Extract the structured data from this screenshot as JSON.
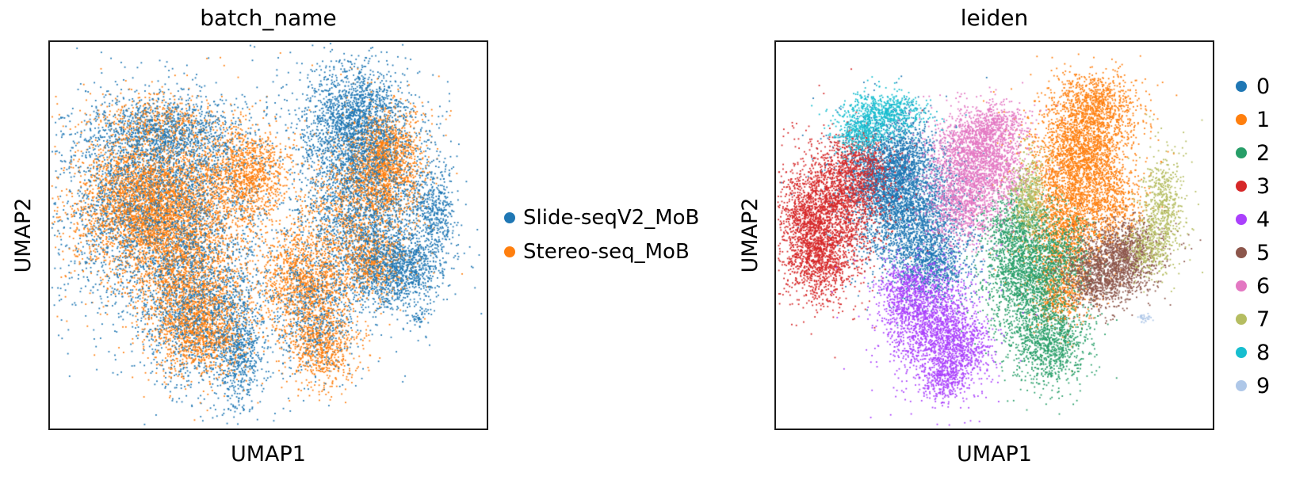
{
  "figure": {
    "background": "#ffffff"
  },
  "chart_data": [
    {
      "type": "scatter",
      "title": "batch_name",
      "xlabel": "UMAP1",
      "ylabel": "UMAP2",
      "axes": {
        "frame": true,
        "ticks": "none",
        "x_range_normalized": [
          0,
          1
        ],
        "y_range_normalized": [
          0,
          1
        ]
      },
      "legend_position": "center right outside",
      "marker_px": 1.8,
      "draw": {
        "passes": 3
      },
      "series": [
        {
          "name": "Stereo-seq_MoB",
          "color": "#ff7f0e",
          "description": "dense orange core of left lobe, pink/purple/green regions, and a dense patch inside upper right lobe",
          "blobs": [
            [
              0.24,
              0.42,
              0.085,
              0.09,
              4200
            ],
            [
              0.32,
              0.63,
              0.06,
              0.085,
              1500
            ],
            [
              0.35,
              0.75,
              0.05,
              0.055,
              950
            ],
            [
              0.455,
              0.34,
              0.045,
              0.06,
              1100
            ],
            [
              0.25,
              0.2,
              0.06,
              0.03,
              350
            ],
            [
              0.77,
              0.31,
              0.04,
              0.065,
              1450
            ],
            [
              0.585,
              0.62,
              0.05,
              0.075,
              1350
            ],
            [
              0.625,
              0.79,
              0.04,
              0.05,
              650
            ],
            [
              0.7,
              0.42,
              0.055,
              0.09,
              800
            ],
            [
              0.74,
              0.57,
              0.04,
              0.04,
              550
            ]
          ]
        },
        {
          "name": "Slide-seqV2_MoB",
          "color": "#1f77b4",
          "description": "blue fringe around left lobe, most of upper right lobe, right edge, centre-bottom strip, tiny isolated clump",
          "blobs": [
            [
              0.26,
              0.24,
              0.09,
              0.05,
              1200
            ],
            [
              0.25,
              0.44,
              0.115,
              0.125,
              3000
            ],
            [
              0.33,
              0.7,
              0.065,
              0.095,
              1100
            ],
            [
              0.43,
              0.8,
              0.03,
              0.08,
              650
            ],
            [
              0.7,
              0.21,
              0.06,
              0.075,
              2000
            ],
            [
              0.72,
              0.44,
              0.075,
              0.11,
              1900
            ],
            [
              0.79,
              0.59,
              0.05,
              0.05,
              1100
            ],
            [
              0.88,
              0.44,
              0.025,
              0.07,
              450
            ],
            [
              0.6,
              0.7,
              0.05,
              0.08,
              650
            ],
            [
              0.845,
              0.715,
              0.009,
              0.007,
              30
            ]
          ]
        }
      ]
    },
    {
      "type": "scatter",
      "title": "leiden",
      "xlabel": "UMAP1",
      "ylabel": "UMAP2",
      "axes": {
        "frame": true,
        "ticks": "none",
        "x_range_normalized": [
          0,
          1
        ],
        "y_range_normalized": [
          0,
          1
        ]
      },
      "legend_position": "right outside",
      "marker_px": 1.8,
      "draw": {
        "passes": 1
      },
      "series": [
        {
          "name": "0",
          "color": "#1f77b4",
          "blobs": [
            [
              0.27,
              0.31,
              0.055,
              0.06,
              1600
            ],
            [
              0.315,
              0.45,
              0.06,
              0.075,
              2000
            ],
            [
              0.355,
              0.575,
              0.045,
              0.05,
              800
            ],
            [
              0.23,
              0.38,
              0.04,
              0.05,
              600
            ]
          ]
        },
        {
          "name": "1",
          "color": "#ff7f0e",
          "blobs": [
            [
              0.7,
              0.29,
              0.055,
              0.07,
              2200
            ],
            [
              0.665,
              0.48,
              0.045,
              0.07,
              1400
            ],
            [
              0.735,
              0.155,
              0.045,
              0.035,
              700
            ],
            [
              0.65,
              0.65,
              0.03,
              0.045,
              500
            ],
            [
              0.77,
              0.42,
              0.035,
              0.05,
              400
            ]
          ]
        },
        {
          "name": "2",
          "color": "#279e68",
          "blobs": [
            [
              0.575,
              0.6,
              0.048,
              0.075,
              1700
            ],
            [
              0.625,
              0.78,
              0.045,
              0.055,
              1000
            ],
            [
              0.55,
              0.47,
              0.035,
              0.04,
              500
            ],
            [
              0.66,
              0.55,
              0.035,
              0.05,
              400
            ]
          ]
        },
        {
          "name": "3",
          "color": "#d62728",
          "blobs": [
            [
              0.13,
              0.42,
              0.055,
              0.07,
              1800
            ],
            [
              0.1,
              0.565,
              0.04,
              0.055,
              1000
            ],
            [
              0.185,
              0.32,
              0.04,
              0.04,
              500
            ],
            [
              0.065,
              0.48,
              0.025,
              0.05,
              400
            ]
          ]
        },
        {
          "name": "4",
          "color": "#aa40fc",
          "blobs": [
            [
              0.35,
              0.72,
              0.05,
              0.065,
              1500
            ],
            [
              0.42,
              0.8,
              0.035,
              0.05,
              700
            ],
            [
              0.295,
              0.645,
              0.03,
              0.04,
              400
            ],
            [
              0.38,
              0.875,
              0.025,
              0.03,
              300
            ]
          ]
        },
        {
          "name": "5",
          "color": "#8c564b",
          "blobs": [
            [
              0.765,
              0.58,
              0.048,
              0.045,
              1300
            ],
            [
              0.815,
              0.52,
              0.035,
              0.035,
              400
            ],
            [
              0.72,
              0.63,
              0.03,
              0.03,
              300
            ]
          ]
        },
        {
          "name": "6",
          "color": "#e377c2",
          "blobs": [
            [
              0.455,
              0.3,
              0.048,
              0.055,
              1500
            ],
            [
              0.43,
              0.42,
              0.042,
              0.05,
              800
            ],
            [
              0.5,
              0.215,
              0.035,
              0.028,
              450
            ],
            [
              0.525,
              0.35,
              0.03,
              0.04,
              250
            ]
          ]
        },
        {
          "name": "7",
          "color": "#b5bd61",
          "blobs": [
            [
              0.578,
              0.4,
              0.02,
              0.05,
              450
            ],
            [
              0.885,
              0.43,
              0.024,
              0.065,
              600
            ],
            [
              0.85,
              0.53,
              0.025,
              0.035,
              250
            ]
          ]
        },
        {
          "name": "8",
          "color": "#17becf",
          "blobs": [
            [
              0.25,
              0.185,
              0.045,
              0.026,
              650
            ],
            [
              0.195,
              0.235,
              0.028,
              0.022,
              350
            ]
          ]
        },
        {
          "name": "9",
          "color": "#aec7e8",
          "blobs": [
            [
              0.845,
              0.715,
              0.009,
              0.007,
              30
            ]
          ]
        }
      ]
    }
  ]
}
